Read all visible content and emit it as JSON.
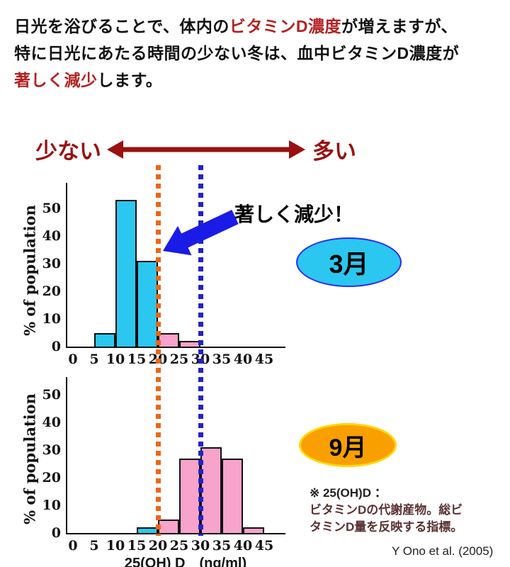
{
  "colors": {
    "accent_red": "#b22222",
    "dark_red": "#991111",
    "arrow_blue": "#1b1be8",
    "bar_cyan": "#2bc7f0",
    "bar_pink": "#f8a3cb",
    "bar_border": "#111111",
    "axis_color": "#111111",
    "ellipse_march_fill": "#2bc7f0",
    "ellipse_march_border": "#2b2bf5",
    "ellipse_sept_fill": "#f9a000",
    "ellipse_sept_border": "#ffd700",
    "note_maroon": "#5a3232"
  },
  "intro": {
    "segments": [
      {
        "text": "日光を浴びることで、体内の"
      },
      {
        "text": "ビタミンD濃度"
      },
      {
        "text": "が増えますが、"
      },
      {
        "text": "特に日光にあたる時間の少ない冬は、血中ビタミンD濃度が"
      },
      {
        "text": "著しく減少"
      },
      {
        "text": "します。"
      }
    ]
  },
  "scale_header": {
    "left_label": "少ない",
    "right_label": "多い"
  },
  "annotation": {
    "text": "著しく減少！"
  },
  "note": {
    "line1": "※ 25(OH)D ：",
    "line2": "ビタミンDの代謝産物。総ビ",
    "line3": "タミンD量を反映する指標。"
  },
  "citation": "Y Ono et al. (2005)",
  "chart_data": [
    {
      "type": "bar",
      "month_label": "3月",
      "ylabel": "% of population",
      "xlabel": "",
      "xticks": [
        0,
        5,
        10,
        15,
        20,
        25,
        30,
        35,
        40,
        45
      ],
      "yticks": [
        0,
        10,
        20,
        30,
        40,
        50
      ],
      "xlim": [
        0,
        47.5
      ],
      "ylim": [
        0,
        55
      ],
      "grid": false,
      "bins": [
        [
          5,
          10
        ],
        [
          10,
          15
        ],
        [
          15,
          20
        ],
        [
          20,
          25
        ],
        [
          25,
          30
        ]
      ],
      "values": [
        5,
        53,
        31,
        5,
        2
      ],
      "bar_colors": [
        "cyan",
        "cyan",
        "cyan",
        "pink",
        "pink"
      ],
      "ref_lines": [
        {
          "x": 20,
          "color": "#ee6611"
        },
        {
          "x": 30,
          "color": "#2222cc"
        }
      ]
    },
    {
      "type": "bar",
      "month_label": "9月",
      "ylabel": "% of population",
      "xlabel": "25(OH) D　(ng/ml)",
      "xticks": [
        0,
        5,
        10,
        15,
        20,
        25,
        30,
        35,
        40,
        45
      ],
      "yticks": [
        0,
        10,
        20,
        30,
        40,
        50
      ],
      "xlim": [
        0,
        47.5
      ],
      "ylim": [
        0,
        55
      ],
      "grid": false,
      "bins": [
        [
          15,
          20
        ],
        [
          20,
          25
        ],
        [
          25,
          30
        ],
        [
          30,
          35
        ],
        [
          35,
          40
        ],
        [
          40,
          45
        ]
      ],
      "values": [
        2,
        5,
        27,
        31,
        27,
        2
      ],
      "bar_colors": [
        "cyan",
        "pink",
        "pink",
        "pink",
        "pink",
        "pink"
      ],
      "ref_lines": [
        {
          "x": 20,
          "color": "#ee6611"
        },
        {
          "x": 30,
          "color": "#2222cc"
        }
      ]
    }
  ]
}
